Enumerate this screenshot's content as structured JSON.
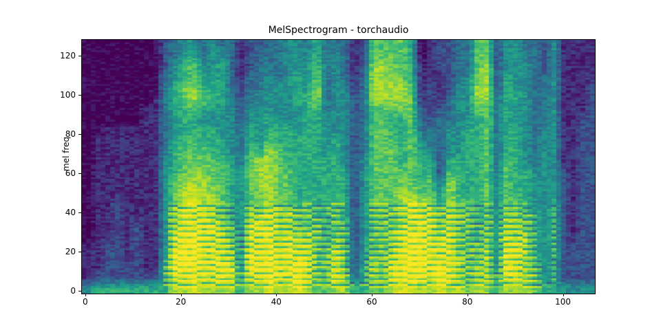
{
  "figure": {
    "title": "MelSpectrogram - torchaudio",
    "y_axis_label": "mel freq",
    "background_color": "#ffffff",
    "spine_color": "#000000",
    "text_color": "#000000"
  },
  "chart_data": {
    "type": "heatmap",
    "title": "MelSpectrogram - torchaudio",
    "xlabel": "",
    "ylabel": "mel freq",
    "legend": "none",
    "grid": false,
    "colormap": "viridis",
    "colormap_stops": [
      "#440154",
      "#482878",
      "#3e4a89",
      "#31688e",
      "#26828e",
      "#1f9e89",
      "#35b779",
      "#6dcd59",
      "#b4de2c",
      "#dfe318",
      "#fde725"
    ],
    "x_range": [
      -0.7,
      106.7
    ],
    "y_range": [
      -1.5,
      128.0
    ],
    "x_ticks": [
      0,
      20,
      40,
      60,
      80,
      100
    ],
    "y_ticks": [
      0,
      20,
      40,
      60,
      80,
      100,
      120
    ],
    "n_time_frames": 107,
    "n_mel_bins": 128,
    "content_description": "Mel spectrogram of speech: silence until ~frame 17, voiced speech bursts with bright harmonic stacks at low mel bins around frames 18-30, 36-48, 52-56, 60-72, 72-78, 88-95, pauses near frames 31-33, 57-59, 86-87, trailing silence after frame ~99.",
    "intensity_grid": {
      "note": "Coarse 24x54 grid of spectrogram magnitude, 0=min(dark purple) to 9=max(yellow). Row 0 = highest mel freq (128), last row = mel 0. Each col = 2 time frames.",
      "rows": 24,
      "cols": 54,
      "scale": [
        0,
        9
      ],
      "row_order": "top-to-bottom",
      "data": [
        "000000002344343312233443533312666650122336624433241111",
        "000000002345344312333444534312666650122336624433241111",
        "000000002456445312333444634312776651122336724443241111",
        "000000003456545313343454634313776651112346725443341111",
        "000000003567555323344454734413777761212447725443341112",
        "000000013567655323444455734423777761213447735543341112",
        "000000113556554424444445634423666662223446635443341112",
        "000000113455444424454445544423665563233445635443341122",
        "001111113455554435455545544423665563334455635543441122",
        "011111113556555435465555545423666564334455635543441122",
        "011111113566655436576555545423666564424455635543441122",
        "011111114566665536776555555424666565525555636543441122",
        "011111114567766546776655555524666665526555636554442122",
        "011111114677766546776655555524666665637555646554442122",
        "011111114678776546676655555524666776647555646554442122",
        "011211114678776546676656556524666787757665646654452122",
        "011211114788876547787766556524666788767665647665452122",
        "011212114788887648887766656624666788868665647765452122",
        "011212114899887648897877656624667898878665748775452122",
        "112212114899888748897888657624667899888666748875452222",
        "112212114999888749898888668624767999888766749875452222",
        "112222115999888849898898668625768999898767749876452222",
        "122222225889888858898898668735768998898767758876452222",
        "455555555778777757787787667755667887787767757776554444"
      ]
    },
    "texture": {
      "noise": 0.75,
      "harmonic_stripes": true,
      "stripe_max_mel": 46
    }
  }
}
